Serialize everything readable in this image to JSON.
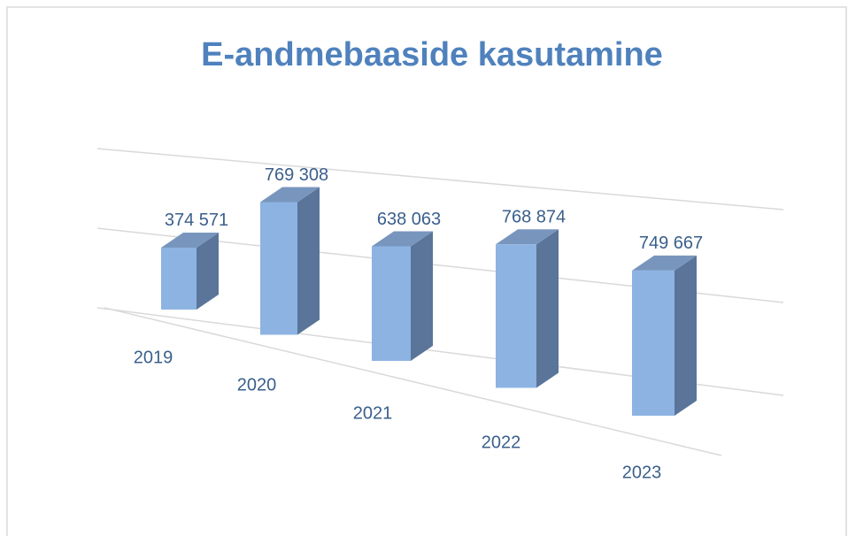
{
  "chart_data": {
    "type": "bar3d",
    "title": "E-andmebaaside kasutamine",
    "categories": [
      "2019",
      "2020",
      "2021",
      "2022",
      "2023"
    ],
    "values": [
      374571,
      769308,
      638063,
      768874,
      749667
    ],
    "value_labels": [
      "374 571",
      "769 308",
      "638 063",
      "768 874",
      "749 667"
    ],
    "color": "#8db3e2",
    "ylim": [
      0,
      1000000
    ],
    "yticks": [
      0,
      500000,
      1000000
    ],
    "grid": true
  }
}
